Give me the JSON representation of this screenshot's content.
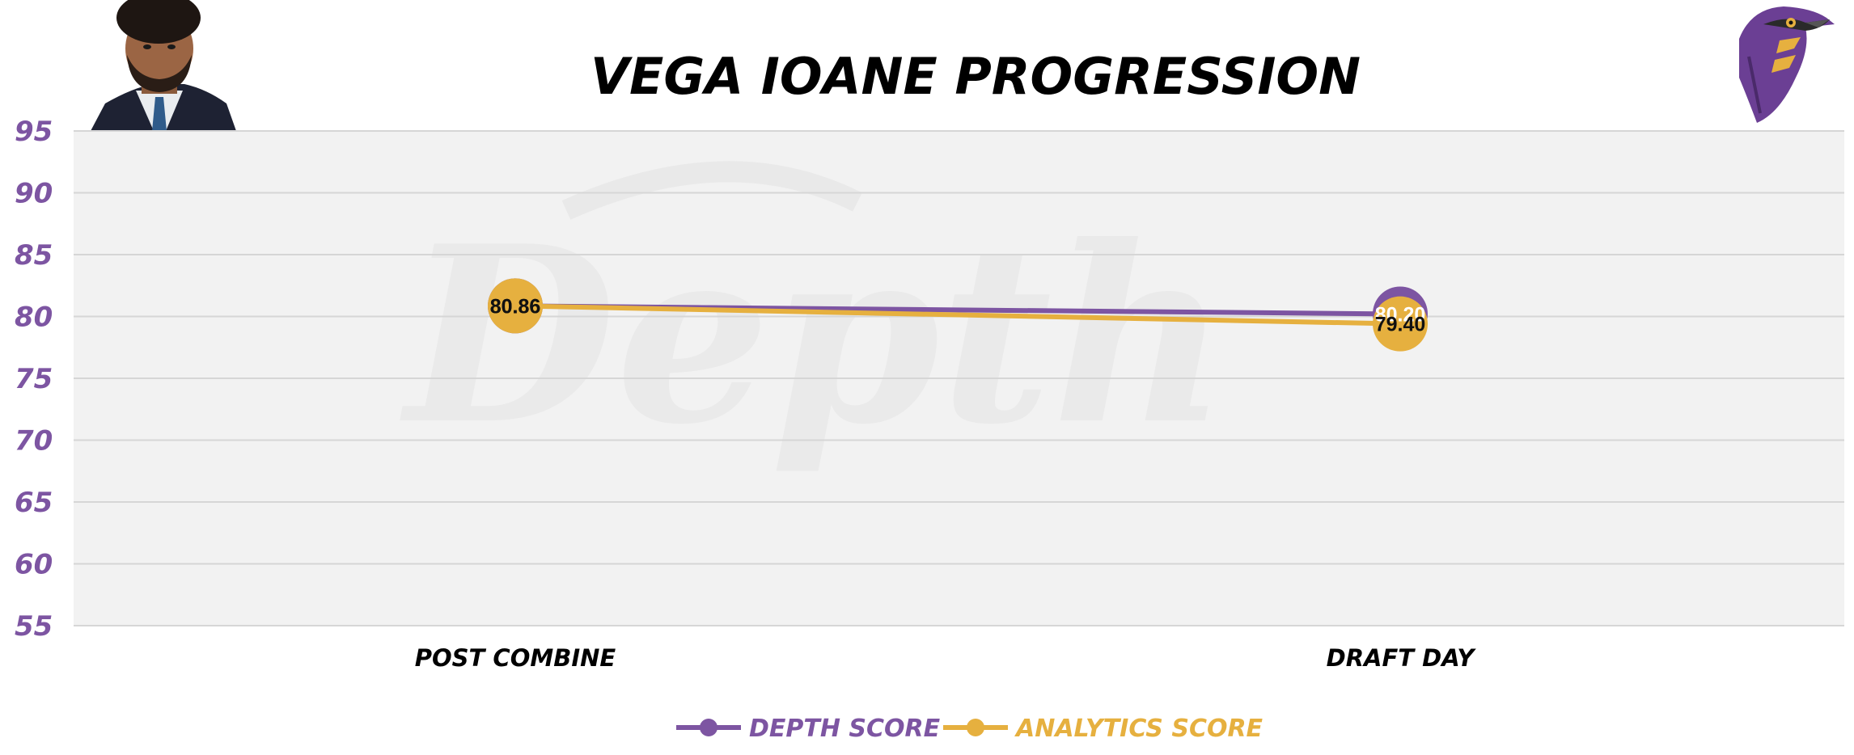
{
  "colors": {
    "depth": "#7d55a2",
    "analytics": "#e6b03f",
    "plot_bg": "#f2f2f2",
    "grid": "#d6d6d6",
    "tick": "#7d55a2",
    "text": "#000000"
  },
  "icons": {
    "player_photo": "player-headshot",
    "team_logo": "raven-head-logo",
    "watermark": "depth-watermark"
  },
  "chart_data": {
    "type": "line",
    "title": "VEGA IOANE PROGRESSION",
    "categories": [
      "POST COMBINE",
      "DRAFT DAY"
    ],
    "ylim": [
      55,
      95
    ],
    "yticks": [
      95,
      90,
      85,
      80,
      75,
      70,
      65,
      60,
      55
    ],
    "grid": true,
    "legend_position": "bottom",
    "series": [
      {
        "name": "DEPTH SCORE",
        "color": "#7d55a2",
        "values": [
          80.86,
          80.2
        ],
        "labels": [
          "80.86",
          "80.20"
        ]
      },
      {
        "name": "ANALYTICS SCORE",
        "color": "#e6b03f",
        "values": [
          80.86,
          79.4
        ],
        "labels": [
          "80.86",
          "79.40"
        ]
      }
    ]
  }
}
